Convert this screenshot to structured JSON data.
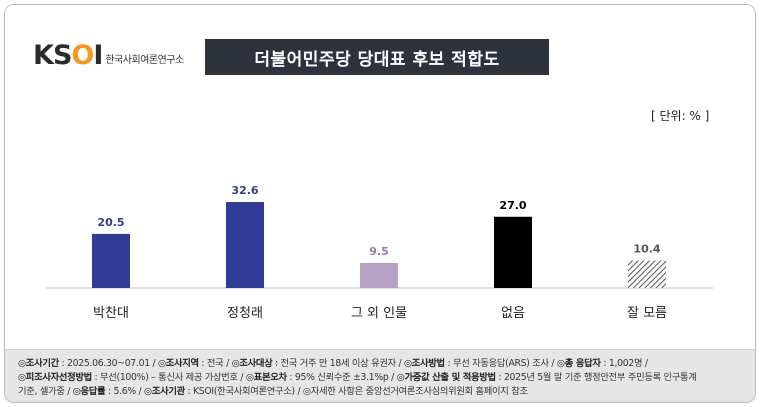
{
  "logo": {
    "mark_k": "K",
    "mark_s": "S",
    "mark_o": "O",
    "mark_i": "I",
    "sub": "한국사회여론연구소"
  },
  "title": "더불어민주당 당대표 후보 적합도",
  "unit": "[ 단위: % ]",
  "chart_data": {
    "type": "bar",
    "title": "더불어민주당 당대표 후보 적합도",
    "categories": [
      "박찬대",
      "정청래",
      "그 외 인물",
      "없음",
      "잘 모름"
    ],
    "values": [
      20.5,
      32.6,
      9.5,
      27.0,
      10.4
    ],
    "value_labels": [
      "20.5",
      "32.6",
      "9.5",
      "27.0",
      "10.4"
    ],
    "colors": [
      "#2e3c96",
      "#2e3c96",
      "#b7a0c6",
      "#000000",
      "hatched"
    ],
    "label_colors": [
      "#2e3c96",
      "#2e3c96",
      "#9a7bb3",
      "#000000",
      "#555555"
    ],
    "ylim": [
      0,
      40
    ],
    "grid": false,
    "xlabel": "",
    "ylabel": ""
  },
  "footer": {
    "lines": [
      [
        {
          "k": "◎조사기간",
          "v": " : 2025.06.30~07.01 / "
        },
        {
          "k": "◎조사지역",
          "v": " : 전국 / "
        },
        {
          "k": "◎조사대상",
          "v": " : 전국 거주 만 18세 이상 유권자 / "
        },
        {
          "k": "◎조사방법",
          "v": " : 무선 자동응답(ARS) 조사 / "
        },
        {
          "k": "◎총 응답자",
          "v": " : 1,002명 /"
        }
      ],
      [
        {
          "k": "◎피조사자선정방법",
          "v": " : 무선(100%) – 통신사 제공 가상번호 / "
        },
        {
          "k": "◎표본오차",
          "v": " : 95% 신뢰수준 ±3.1%p / "
        },
        {
          "k": "◎가중값 산출 및 적용방법",
          "v": " : 2025년 5월 말 기준 행정안전부 주민등록 인구통계"
        }
      ],
      [
        {
          "k": "",
          "v": "기준, 셀가중 / "
        },
        {
          "k": "◎응답률",
          "v": " : 5.6% / "
        },
        {
          "k": "◎조사기관",
          "v": " : KSOI(한국사회여론연구소) / ◎자세한 사항은 중앙선거여론조사심의위원회 홈페이지 참조"
        }
      ]
    ]
  }
}
